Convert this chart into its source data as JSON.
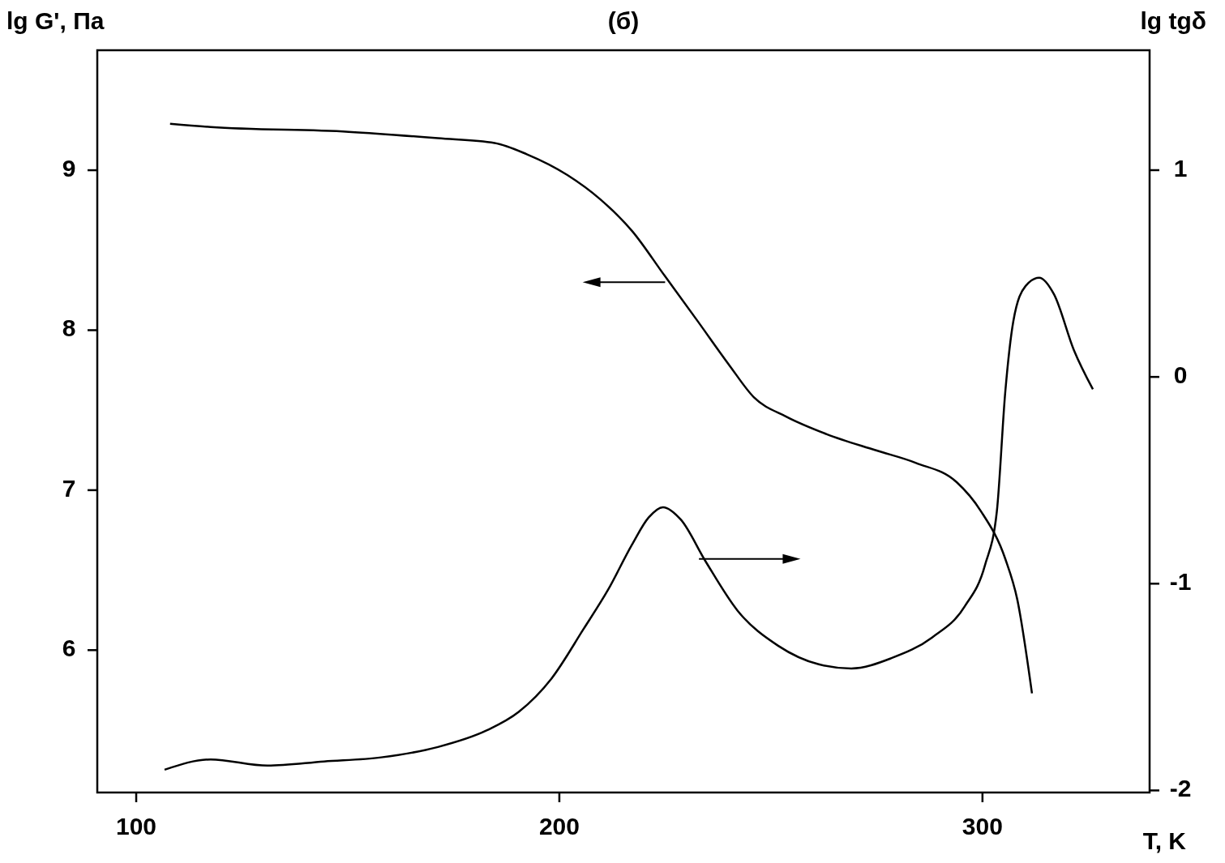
{
  "chart_data": {
    "type": "line",
    "title": "(б)",
    "xlabel": "T, K",
    "ylabel": "lg G', Па",
    "y2label": "lg tgδ",
    "xlim": [
      90.8,
      339.5
    ],
    "xticks": [
      100,
      200,
      300
    ],
    "ylim": [
      5.11,
      9.75
    ],
    "yticks": [
      6,
      7,
      8,
      9
    ],
    "y2lim": [
      -2.01,
      1.58
    ],
    "y2ticks": [
      -2,
      -1,
      0,
      1
    ],
    "grid": false,
    "marker": "none",
    "line_style": "solid",
    "series": [
      {
        "color": "#000000",
        "x": [
          108,
          117.6,
          150.2,
          171.3,
          184.7,
          192.3,
          201.9,
          209.6,
          217.2,
          224.9,
          232.6,
          240.2,
          246,
          253.6,
          263.2,
          274.7,
          284.3,
          293.9,
          299.6,
          305.4,
          308.2,
          311.7
        ],
        "values": [
          9.29,
          9.27,
          9.24,
          9.2,
          9.17,
          9.1,
          8.97,
          8.82,
          8.62,
          8.34,
          8.06,
          7.78,
          7.58,
          7.46,
          7.35,
          7.25,
          7.17,
          7.05,
          6.87,
          6.57,
          6.32,
          5.73
        ]
      },
      {
        "color": "#000000",
        "axis": "y2",
        "x": [
          106.7,
          117.6,
          131,
          144.4,
          157.9,
          171.3,
          182.8,
          190.4,
          198.1,
          205.7,
          211.5,
          217.2,
          221.1,
          224.5,
          228.7,
          234.5,
          242.1,
          251.7,
          261.3,
          269,
          278.5,
          288.1,
          295.8,
          300.6,
          303.4,
          305.4,
          307.3,
          310.2,
          313.4,
          316.9,
          321.6,
          326.1
        ],
        "values": [
          -1.9,
          -1.85,
          -1.88,
          -1.86,
          -1.84,
          -1.79,
          -1.71,
          -1.62,
          -1.46,
          -1.22,
          -1.03,
          -0.81,
          -0.68,
          -0.63,
          -0.69,
          -0.89,
          -1.13,
          -1.3,
          -1.39,
          -1.41,
          -1.36,
          -1.26,
          -1.11,
          -0.91,
          -0.65,
          -0.07,
          0.27,
          0.44,
          0.48,
          0.4,
          0.13,
          -0.06
        ]
      }
    ]
  }
}
